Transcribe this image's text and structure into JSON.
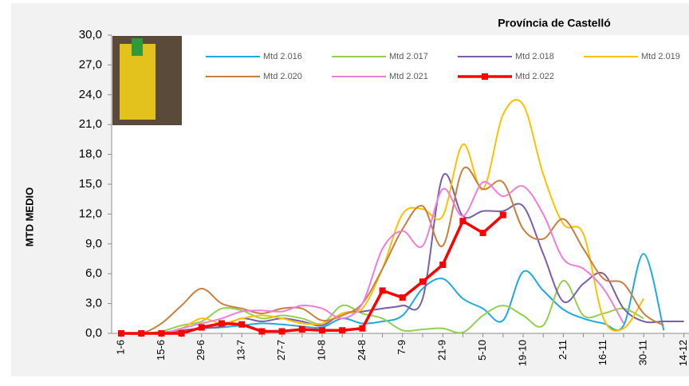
{
  "chart_data": {
    "type": "line",
    "title": "Província de Castelló",
    "y_label": "MTD MEDIO",
    "categories": [
      "1-6",
      null,
      "15-6",
      null,
      "29-6",
      null,
      "13-7",
      null,
      "27-7",
      null,
      "10-8",
      null,
      "24-8",
      null,
      "7-9",
      null,
      "21-9",
      null,
      "5-10",
      null,
      "19-10",
      null,
      "2-11",
      null,
      "16-11",
      null,
      "30-11",
      null,
      "14-12"
    ],
    "ylim": [
      0,
      30
    ],
    "yticks": [
      {
        "value": 0,
        "label": "0,0"
      },
      {
        "value": 3,
        "label": "3,0"
      },
      {
        "value": 6,
        "label": "6,0"
      },
      {
        "value": 9,
        "label": "9,0"
      },
      {
        "value": 12,
        "label": "12,0"
      },
      {
        "value": 15,
        "label": "15,0"
      },
      {
        "value": 18,
        "label": "18,0"
      },
      {
        "value": 21,
        "label": "21,0"
      },
      {
        "value": 24,
        "label": "24,0"
      },
      {
        "value": 27,
        "label": "27,0"
      },
      {
        "value": 30,
        "label": "30,0"
      }
    ],
    "grid": false,
    "series": [
      {
        "name": "Mtd 2.016",
        "color": "#1fa9e1",
        "values": [
          0,
          0,
          0.1,
          0.3,
          0.5,
          0.6,
          0.8,
          1.0,
          0.9,
          0.7,
          0.6,
          1.5,
          1.0,
          1.2,
          1.8,
          4.5,
          5.5,
          3.5,
          2.5,
          1.3,
          6.2,
          4.3,
          2.4,
          1.5,
          1.0,
          0.8,
          8.0,
          0.3,
          null
        ]
      },
      {
        "name": "Mtd 2.017",
        "color": "#92d050",
        "values": [
          0,
          0,
          0.2,
          0.8,
          1.2,
          2.5,
          2.3,
          1.5,
          1.8,
          1.5,
          1.0,
          2.8,
          2.0,
          1.5,
          0.3,
          0.4,
          0.5,
          0.1,
          1.8,
          2.8,
          1.8,
          0.8,
          5.3,
          1.8,
          2.0,
          2.5,
          1.5,
          null,
          null
        ]
      },
      {
        "name": "Mtd 2.018",
        "color": "#7b5ea7",
        "values": [
          0,
          0,
          0,
          0.3,
          0.5,
          0.7,
          1.5,
          1.2,
          1.5,
          1.2,
          0.8,
          2.0,
          2.2,
          2.5,
          2.8,
          3.5,
          15.8,
          11.8,
          12.3,
          12.3,
          12.8,
          8.0,
          3.2,
          5.0,
          6.0,
          2.5,
          1.2,
          1.2,
          1.2
        ]
      },
      {
        "name": "Mtd 2.019",
        "color": "#ffc000",
        "values": [
          0,
          0,
          0,
          0.5,
          1.5,
          1.0,
          1.5,
          1.8,
          1.5,
          1.0,
          1.0,
          2.0,
          2.5,
          6.5,
          12.0,
          12.5,
          11.8,
          19.0,
          14.5,
          22.0,
          23.0,
          16.0,
          11.0,
          10.0,
          1.5,
          0.5,
          3.5,
          null,
          null
        ]
      },
      {
        "name": "Mtd 2.020",
        "color": "#c8803e",
        "values": [
          0,
          0,
          1.0,
          2.8,
          4.5,
          3.0,
          2.5,
          2.0,
          2.5,
          2.5,
          1.3,
          1.8,
          3.0,
          6.5,
          10.5,
          12.8,
          8.8,
          16.5,
          14.5,
          15.2,
          10.5,
          9.5,
          11.5,
          8.5,
          5.5,
          5.0,
          2.0,
          0.8,
          null
        ]
      },
      {
        "name": "Mtd 2.021",
        "color": "#f07cdb",
        "values": [
          0,
          0,
          0,
          0.5,
          1.0,
          1.5,
          2.2,
          2.3,
          2.2,
          2.8,
          2.5,
          1.5,
          3.0,
          8.5,
          10.3,
          8.8,
          14.5,
          11.8,
          15.2,
          13.8,
          14.8,
          12.0,
          7.5,
          6.5,
          4.5,
          1.0,
          null,
          null,
          null
        ]
      },
      {
        "name": "Mtd 2.022",
        "color": "#ff0000",
        "markers": true,
        "values": [
          0,
          0,
          0,
          0,
          0.6,
          1.0,
          0.9,
          0.2,
          0.2,
          0.4,
          0.3,
          0.3,
          0.5,
          4.3,
          3.6,
          5.2,
          6.9,
          11.3,
          10.1,
          11.9,
          null,
          null,
          null,
          null,
          null,
          null,
          null,
          null,
          null
        ]
      }
    ]
  }
}
